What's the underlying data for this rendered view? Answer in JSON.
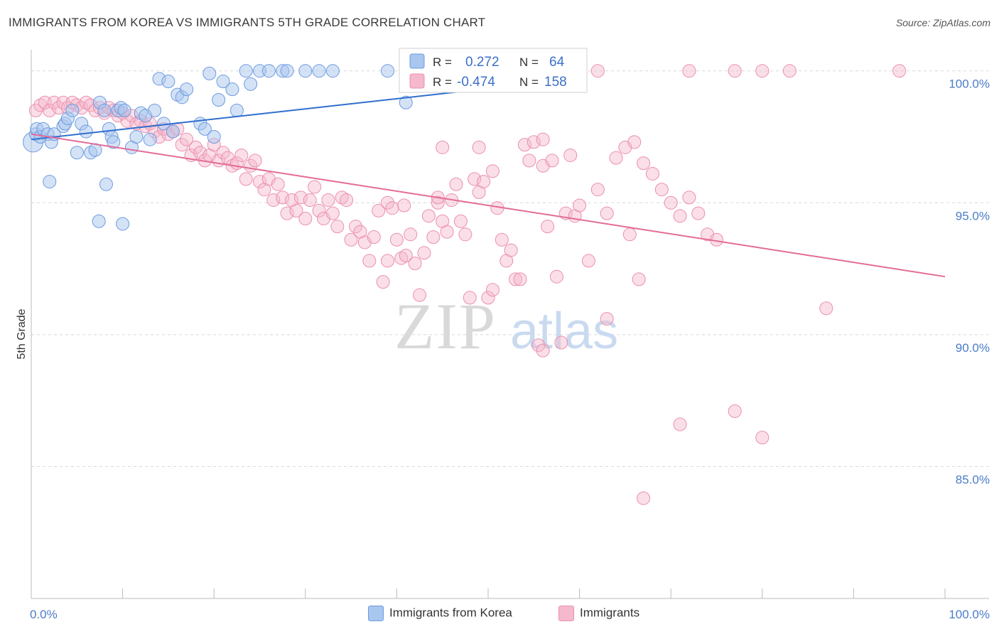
{
  "title": "IMMIGRANTS FROM KOREA VS IMMIGRANTS 5TH GRADE CORRELATION CHART",
  "source": "Source: ZipAtlas.com",
  "watermark": {
    "zip": "ZIP",
    "atlas": "atlas"
  },
  "legend": {
    "r_label": "R =",
    "n_label": "N =",
    "korea": {
      "r": "0.272",
      "n": "64"
    },
    "immigrants": {
      "r": "-0.474",
      "n": "158"
    }
  },
  "bottom_legend": {
    "korea": "Immigrants from Korea",
    "immigrants": "Immigrants"
  },
  "colors": {
    "korea_fill": "#a9c6ee",
    "korea_stroke": "#6d9be0",
    "korea_line": "#2f6fcf",
    "imm_fill": "#f5b8cc",
    "imm_stroke": "#ec8fae",
    "imm_line": "#e36b98",
    "axis_text": "#4a7cc7",
    "grid": "#d8d8d8"
  },
  "chart_data": {
    "type": "scatter",
    "title": "IMMIGRANTS FROM KOREA VS IMMIGRANTS 5TH GRADE CORRELATION CHART",
    "xlabel": "",
    "ylabel": "5th Grade",
    "xlim": [
      0,
      100
    ],
    "ylim": [
      80.0,
      100.8
    ],
    "x_tick_labels": [
      "0.0%",
      "100.0%"
    ],
    "y_ticks": [
      100,
      95,
      90,
      85
    ],
    "y_tick_labels": [
      "100.0%",
      "95.0%",
      "90.0%",
      "85.0%"
    ],
    "grid": true,
    "series": [
      {
        "name": "Immigrants from Korea",
        "r": 0.272,
        "n": 64,
        "trend": [
          [
            0,
            97.4
          ],
          [
            57,
            99.6
          ]
        ],
        "points": [
          [
            0.2,
            97.3
          ],
          [
            0.5,
            97.6
          ],
          [
            0.6,
            97.8
          ],
          [
            1.0,
            97.5
          ],
          [
            1.3,
            97.8
          ],
          [
            1.8,
            97.6
          ],
          [
            2.2,
            97.3
          ],
          [
            2.5,
            97.6
          ],
          [
            3.5,
            97.9
          ],
          [
            3.7,
            98.0
          ],
          [
            4.0,
            98.2
          ],
          [
            4.5,
            98.5
          ],
          [
            5.0,
            96.9
          ],
          [
            5.5,
            98.0
          ],
          [
            6.0,
            97.7
          ],
          [
            6.5,
            96.9
          ],
          [
            7.0,
            97.0
          ],
          [
            7.5,
            98.8
          ],
          [
            8.0,
            98.5
          ],
          [
            8.5,
            97.8
          ],
          [
            8.8,
            97.5
          ],
          [
            9.0,
            97.3
          ],
          [
            9.5,
            98.5
          ],
          [
            9.8,
            98.6
          ],
          [
            10.2,
            98.5
          ],
          [
            11.0,
            97.1
          ],
          [
            11.5,
            97.5
          ],
          [
            12.0,
            98.4
          ],
          [
            12.5,
            98.3
          ],
          [
            13.0,
            97.4
          ],
          [
            13.5,
            98.5
          ],
          [
            14.0,
            99.7
          ],
          [
            14.5,
            98.0
          ],
          [
            15.0,
            99.6
          ],
          [
            15.5,
            97.7
          ],
          [
            16.0,
            99.1
          ],
          [
            16.5,
            99.0
          ],
          [
            17.0,
            99.3
          ],
          [
            18.5,
            98.0
          ],
          [
            19.0,
            97.8
          ],
          [
            19.5,
            99.9
          ],
          [
            20.0,
            97.5
          ],
          [
            20.5,
            98.9
          ],
          [
            21.0,
            99.6
          ],
          [
            22.0,
            99.3
          ],
          [
            22.5,
            98.5
          ],
          [
            23.5,
            100.0
          ],
          [
            24.0,
            99.5
          ],
          [
            25.0,
            100.0
          ],
          [
            26.0,
            100.0
          ],
          [
            27.5,
            100.0
          ],
          [
            28.0,
            100.0
          ],
          [
            30.0,
            100.0
          ],
          [
            31.5,
            100.0
          ],
          [
            33.0,
            100.0
          ],
          [
            39.0,
            100.0
          ],
          [
            41.0,
            98.8
          ],
          [
            45.0,
            100.0
          ],
          [
            47.0,
            100.0
          ],
          [
            55.0,
            100.0
          ],
          [
            2.0,
            95.8
          ],
          [
            8.2,
            95.7
          ],
          [
            7.4,
            94.3
          ],
          [
            10.0,
            94.2
          ]
        ]
      },
      {
        "name": "Immigrants",
        "r": -0.474,
        "n": 158,
        "trend": [
          [
            0,
            97.6
          ],
          [
            100,
            92.2
          ]
        ],
        "points": [
          [
            0.5,
            98.5
          ],
          [
            1.0,
            98.7
          ],
          [
            1.5,
            98.8
          ],
          [
            2.0,
            98.5
          ],
          [
            2.5,
            98.8
          ],
          [
            3.0,
            98.6
          ],
          [
            3.5,
            98.8
          ],
          [
            4.0,
            98.6
          ],
          [
            4.5,
            98.8
          ],
          [
            5.0,
            98.7
          ],
          [
            5.5,
            98.6
          ],
          [
            6.0,
            98.8
          ],
          [
            6.5,
            98.7
          ],
          [
            7.0,
            98.5
          ],
          [
            7.5,
            98.6
          ],
          [
            8.0,
            98.4
          ],
          [
            8.5,
            98.6
          ],
          [
            9.0,
            98.5
          ],
          [
            9.5,
            98.3
          ],
          [
            10.0,
            98.4
          ],
          [
            10.5,
            98.1
          ],
          [
            11.0,
            98.3
          ],
          [
            11.5,
            98.0
          ],
          [
            12.0,
            98.1
          ],
          [
            12.5,
            97.9
          ],
          [
            13.0,
            98.0
          ],
          [
            13.5,
            97.7
          ],
          [
            14.0,
            97.5
          ],
          [
            14.5,
            97.8
          ],
          [
            15.0,
            97.6
          ],
          [
            15.5,
            97.7
          ],
          [
            16.0,
            97.8
          ],
          [
            16.5,
            97.2
          ],
          [
            17.0,
            97.4
          ],
          [
            17.5,
            96.8
          ],
          [
            18.0,
            97.1
          ],
          [
            18.5,
            96.9
          ],
          [
            19.0,
            96.6
          ],
          [
            19.5,
            96.8
          ],
          [
            20.0,
            97.2
          ],
          [
            20.5,
            96.6
          ],
          [
            21.0,
            96.9
          ],
          [
            21.5,
            96.7
          ],
          [
            22.0,
            96.4
          ],
          [
            22.5,
            96.5
          ],
          [
            23.0,
            96.8
          ],
          [
            23.5,
            95.9
          ],
          [
            24.0,
            96.4
          ],
          [
            24.5,
            96.6
          ],
          [
            25.0,
            95.8
          ],
          [
            25.5,
            95.5
          ],
          [
            26.0,
            95.9
          ],
          [
            26.5,
            95.1
          ],
          [
            27.0,
            95.7
          ],
          [
            27.5,
            95.2
          ],
          [
            28.0,
            94.6
          ],
          [
            28.5,
            95.1
          ],
          [
            29.0,
            94.7
          ],
          [
            29.5,
            95.2
          ],
          [
            30.0,
            94.4
          ],
          [
            30.5,
            95.1
          ],
          [
            31.0,
            95.6
          ],
          [
            31.5,
            94.7
          ],
          [
            32.0,
            94.4
          ],
          [
            32.5,
            95.1
          ],
          [
            33.0,
            94.6
          ],
          [
            33.5,
            94.1
          ],
          [
            34.0,
            95.2
          ],
          [
            34.5,
            95.1
          ],
          [
            35.0,
            93.6
          ],
          [
            35.5,
            94.1
          ],
          [
            36.0,
            93.9
          ],
          [
            36.5,
            93.5
          ],
          [
            37.0,
            92.8
          ],
          [
            37.5,
            93.7
          ],
          [
            38.0,
            94.7
          ],
          [
            38.5,
            92.0
          ],
          [
            39.0,
            95.0
          ],
          [
            39.5,
            94.8
          ],
          [
            40.0,
            93.6
          ],
          [
            40.5,
            92.9
          ],
          [
            41.0,
            93.0
          ],
          [
            41.5,
            93.8
          ],
          [
            42.0,
            92.7
          ],
          [
            42.5,
            91.5
          ],
          [
            43.0,
            93.1
          ],
          [
            43.5,
            94.5
          ],
          [
            44.0,
            93.7
          ],
          [
            44.5,
            95.0
          ],
          [
            45.0,
            94.3
          ],
          [
            45.5,
            93.9
          ],
          [
            46.0,
            95.1
          ],
          [
            46.5,
            95.7
          ],
          [
            47.0,
            94.3
          ],
          [
            47.5,
            93.8
          ],
          [
            48.0,
            91.4
          ],
          [
            48.5,
            95.9
          ],
          [
            49.0,
            95.4
          ],
          [
            49.5,
            95.8
          ],
          [
            50.0,
            91.4
          ],
          [
            50.5,
            91.7
          ],
          [
            51.0,
            94.8
          ],
          [
            51.5,
            93.6
          ],
          [
            52.0,
            92.8
          ],
          [
            52.5,
            93.2
          ],
          [
            53.0,
            92.1
          ],
          [
            53.5,
            92.1
          ],
          [
            54.0,
            97.2
          ],
          [
            54.5,
            96.6
          ],
          [
            55.0,
            97.3
          ],
          [
            56.0,
            96.4
          ],
          [
            56.5,
            94.1
          ],
          [
            57.0,
            96.6
          ],
          [
            57.5,
            92.2
          ],
          [
            58.0,
            89.7
          ],
          [
            58.5,
            94.6
          ],
          [
            59.0,
            96.8
          ],
          [
            59.5,
            94.5
          ],
          [
            60.0,
            94.9
          ],
          [
            61.0,
            92.8
          ],
          [
            62.0,
            95.5
          ],
          [
            63.0,
            94.6
          ],
          [
            64.0,
            96.7
          ],
          [
            65.0,
            97.1
          ],
          [
            65.5,
            93.8
          ],
          [
            66.0,
            97.3
          ],
          [
            67.0,
            96.5
          ],
          [
            68.0,
            96.1
          ],
          [
            69.0,
            95.5
          ],
          [
            70.0,
            95.0
          ],
          [
            71.0,
            94.5
          ],
          [
            72.0,
            95.2
          ],
          [
            73.0,
            94.6
          ],
          [
            74.0,
            93.8
          ],
          [
            75.0,
            93.6
          ],
          [
            45.0,
            97.1
          ],
          [
            50.5,
            96.2
          ],
          [
            56.0,
            97.4
          ],
          [
            66.5,
            92.1
          ],
          [
            87.0,
            91.0
          ],
          [
            63.0,
            90.6
          ],
          [
            55.5,
            89.6
          ],
          [
            56.0,
            89.4
          ],
          [
            77.0,
            87.1
          ],
          [
            80.0,
            86.1
          ],
          [
            71.0,
            86.6
          ],
          [
            67.0,
            83.8
          ],
          [
            55.0,
            100.0
          ],
          [
            62.0,
            100.0
          ],
          [
            72.0,
            100.0
          ],
          [
            77.0,
            100.0
          ],
          [
            80.0,
            100.0
          ],
          [
            83.0,
            100.0
          ],
          [
            95.0,
            100.0
          ],
          [
            44.5,
            95.2
          ],
          [
            40.8,
            94.9
          ],
          [
            39.0,
            92.8
          ],
          [
            49.0,
            97.1
          ]
        ]
      }
    ]
  }
}
